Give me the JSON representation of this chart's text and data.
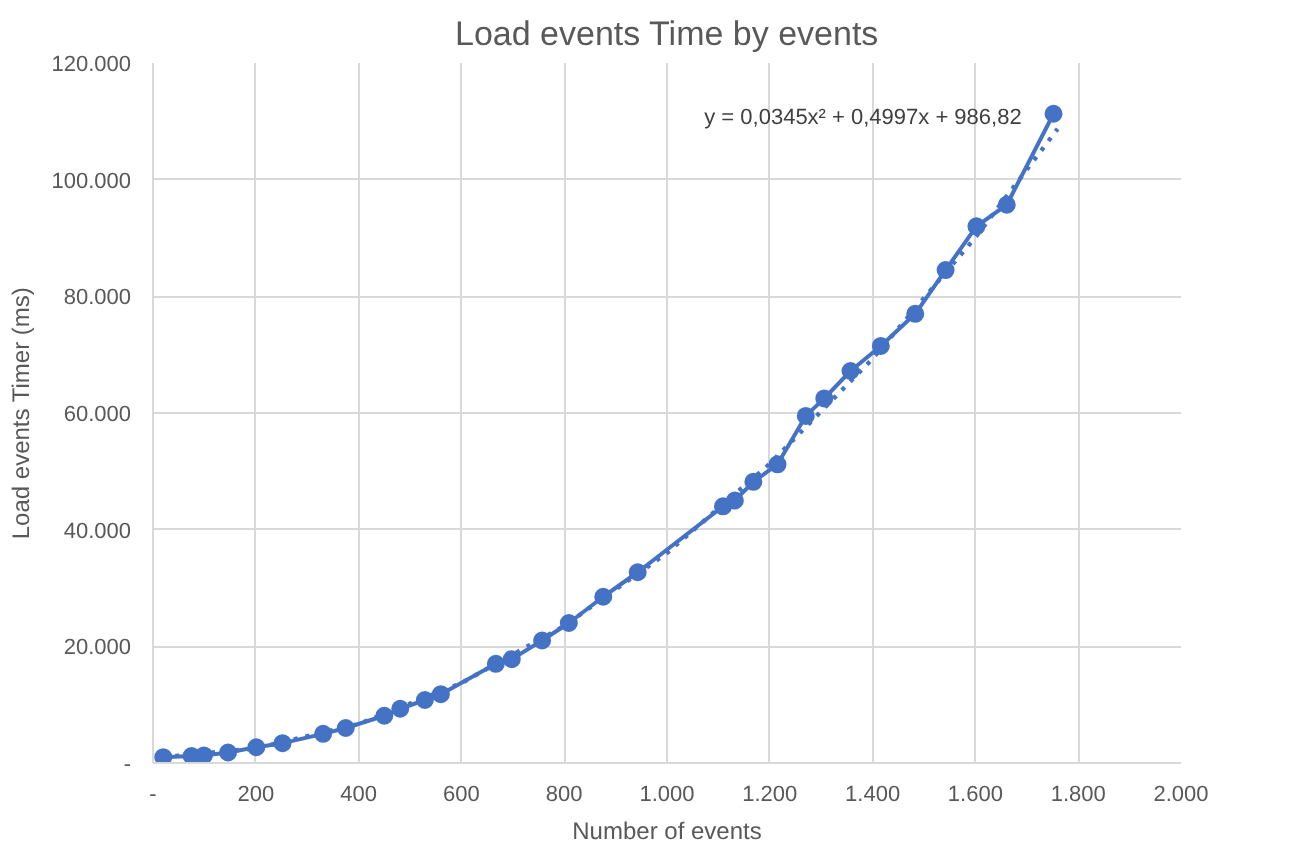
{
  "chart_data": {
    "type": "line",
    "title": "Load events Time by events",
    "xlabel": "Number of events",
    "ylabel": "Load events Timer (ms)",
    "x": [
      20,
      75,
      99,
      146,
      201,
      252,
      331,
      375,
      450,
      481,
      529,
      560,
      667,
      698,
      757,
      809,
      876,
      943,
      1109,
      1132,
      1168,
      1215,
      1270,
      1306,
      1357,
      1416,
      1483,
      1542,
      1602,
      1661,
      1752
    ],
    "series": [
      {
        "color": "#4472c4",
        "marker": "circle",
        "line_style": "solid",
        "values": [
          1000,
          1200,
          1300,
          1800,
          2700,
          3400,
          5000,
          6000,
          8100,
          9300,
          10800,
          11800,
          17000,
          17800,
          21000,
          24000,
          28500,
          32700,
          44000,
          45000,
          48200,
          51200,
          59500,
          62500,
          67200,
          71500,
          77000,
          84500,
          92000,
          95700,
          111300
        ]
      },
      {
        "type": "line",
        "color": "#4472c4",
        "marker": "none",
        "line_style": "dotted",
        "x": [
          20,
          200,
          400,
          600,
          800,
          1000,
          1200,
          1400,
          1600,
          1760
        ],
        "values": [
          1000,
          2500,
          6700,
          13700,
          23500,
          36000,
          51300,
          69300,
          90100,
          108700
        ]
      }
    ],
    "annotations": [
      "y = 0,0345x² + 0,4997x + 986,82"
    ],
    "xlim": [
      0,
      2000
    ],
    "ylim": [
      0,
      120000
    ],
    "xticks": [
      {
        "value": 0,
        "label": "-"
      },
      {
        "value": 200,
        "label": "200"
      },
      {
        "value": 400,
        "label": "400"
      },
      {
        "value": 600,
        "label": "600"
      },
      {
        "value": 800,
        "label": "800"
      },
      {
        "value": 1000,
        "label": "1.000"
      },
      {
        "value": 1200,
        "label": "1.200"
      },
      {
        "value": 1400,
        "label": "1.400"
      },
      {
        "value": 1600,
        "label": "1.600"
      },
      {
        "value": 1800,
        "label": "1.800"
      },
      {
        "value": 2000,
        "label": "2.000"
      }
    ],
    "yticks": [
      {
        "value": 0,
        "label": "-"
      },
      {
        "value": 20000,
        "label": "20.000"
      },
      {
        "value": 40000,
        "label": "40.000"
      },
      {
        "value": 60000,
        "label": "60.000"
      },
      {
        "value": 80000,
        "label": "80.000"
      },
      {
        "value": 100000,
        "label": "100.000"
      },
      {
        "value": 120000,
        "label": "120.000"
      }
    ],
    "grid": true
  }
}
